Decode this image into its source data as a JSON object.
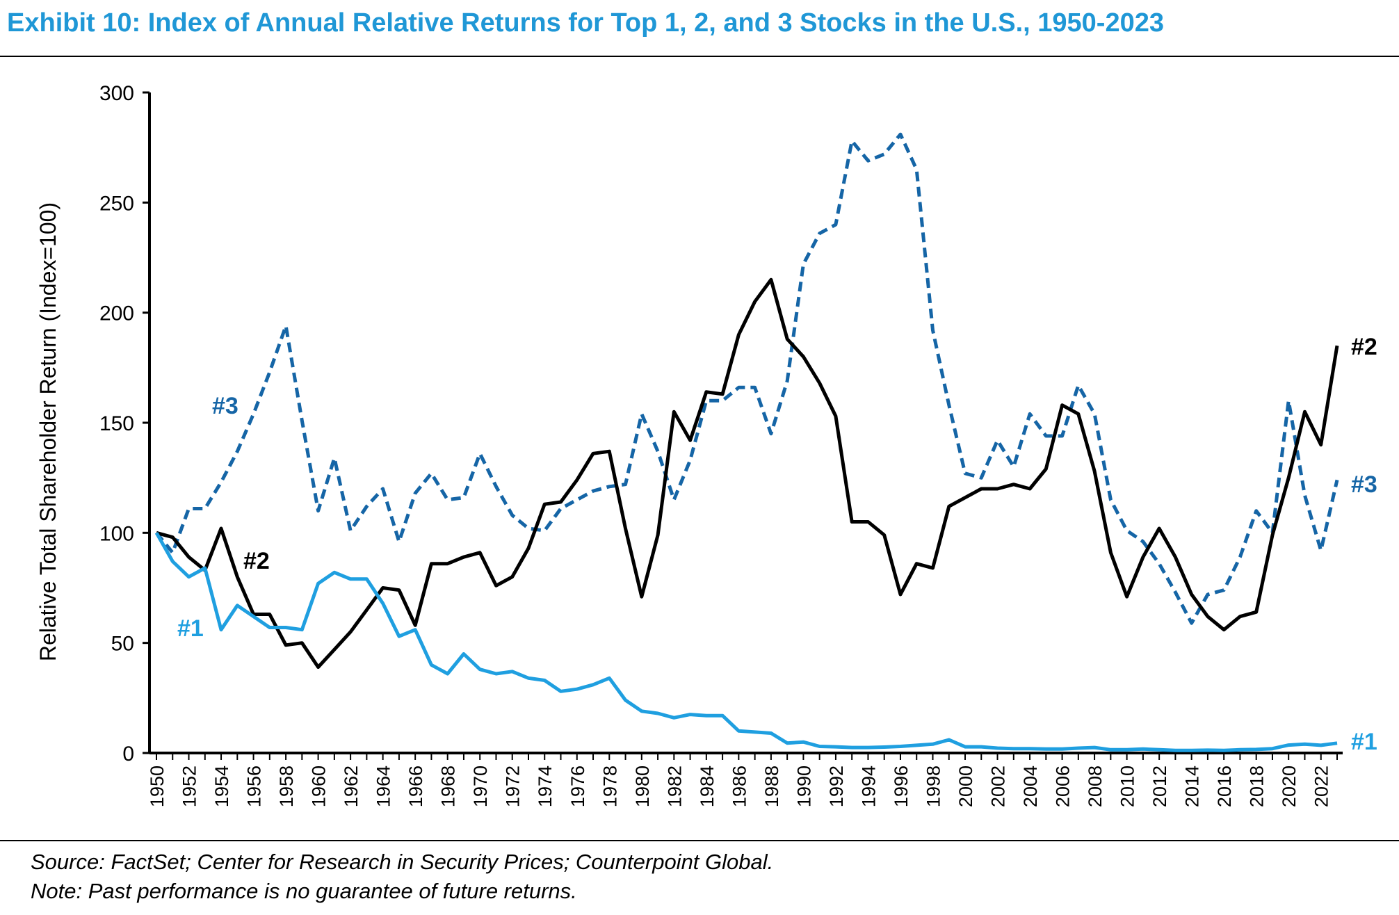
{
  "header": {
    "title": "Exhibit 10: Index of Annual Relative Returns for Top 1, 2, and 3 Stocks in the U.S., 1950-2023"
  },
  "footer": {
    "source": "Source: FactSet; Center for Research in Security Prices; Counterpoint Global.",
    "note": "Note: Past performance is no guarantee of future returns."
  },
  "colors": {
    "top1": "#1f9fe0",
    "top2": "#000000",
    "top3": "#1565a6",
    "title": "#1f97d6"
  },
  "chart_data": {
    "type": "line",
    "title": "Exhibit 10: Index of Annual Relative Returns for Top 1, 2, and 3 Stocks in the U.S., 1950-2023",
    "ylabel": "Relative Total Shareholder Return (Index=100)",
    "xlabel": "",
    "ylim": [
      0,
      300
    ],
    "yticks": [
      0,
      50,
      100,
      150,
      200,
      250,
      300
    ],
    "xlim": [
      1950,
      2023
    ],
    "xtick_labels": [
      "1950",
      "1952",
      "1954",
      "1956",
      "1958",
      "1960",
      "1962",
      "1964",
      "1966",
      "1968",
      "1970",
      "1972",
      "1974",
      "1976",
      "1978",
      "1980",
      "1982",
      "1984",
      "1986",
      "1988",
      "1990",
      "1992",
      "1994",
      "1996",
      "1998",
      "2000",
      "2002",
      "2004",
      "2006",
      "2008",
      "2010",
      "2012",
      "2014",
      "2016",
      "2018",
      "2020",
      "2022"
    ],
    "grid": false,
    "legend": "none",
    "x": [
      1950,
      1951,
      1952,
      1953,
      1954,
      1955,
      1956,
      1957,
      1958,
      1959,
      1960,
      1961,
      1962,
      1963,
      1964,
      1965,
      1966,
      1967,
      1968,
      1969,
      1970,
      1971,
      1972,
      1973,
      1974,
      1975,
      1976,
      1977,
      1978,
      1979,
      1980,
      1981,
      1982,
      1983,
      1984,
      1985,
      1986,
      1987,
      1988,
      1989,
      1990,
      1991,
      1992,
      1993,
      1994,
      1995,
      1996,
      1997,
      1998,
      1999,
      2000,
      2001,
      2002,
      2003,
      2004,
      2005,
      2006,
      2007,
      2008,
      2009,
      2010,
      2011,
      2012,
      2013,
      2014,
      2015,
      2016,
      2017,
      2018,
      2019,
      2020,
      2021,
      2022,
      2023
    ],
    "series": [
      {
        "name": "#1",
        "label_positions": [
          "start-left",
          "end-right"
        ],
        "style": "solid",
        "values": [
          100,
          87,
          80,
          84,
          56,
          67,
          62,
          57,
          57,
          56,
          77,
          82,
          79,
          79,
          68,
          53,
          56,
          40,
          36,
          45,
          38,
          36,
          37,
          34,
          33,
          28,
          29,
          31,
          34,
          24,
          19,
          18,
          16,
          17.5,
          17,
          17,
          10,
          9.5,
          9,
          4.5,
          5,
          3,
          2.8,
          2.5,
          2.5,
          2.7,
          3,
          3.5,
          4,
          6,
          2.8,
          2.8,
          2.2,
          2,
          2,
          1.8,
          1.8,
          2.2,
          2.5,
          1.5,
          1.5,
          1.8,
          1.5,
          1.2,
          1.2,
          1.3,
          1.2,
          1.5,
          1.6,
          2,
          3.6,
          4,
          3.5,
          4.5
        ]
      },
      {
        "name": "#2",
        "label_positions": [
          "start-right",
          "end-right"
        ],
        "style": "solid",
        "values": [
          100,
          98,
          89,
          83,
          102,
          80,
          63,
          63,
          49,
          50,
          39,
          47,
          55,
          65,
          75,
          74,
          58,
          86,
          86,
          89,
          91,
          76,
          80,
          93,
          113,
          114,
          124,
          136,
          137,
          102,
          71,
          99,
          155,
          142,
          164,
          163,
          190,
          205,
          215,
          188,
          180,
          168,
          153,
          105,
          105,
          99,
          72,
          86,
          84,
          112,
          116,
          120,
          120,
          122,
          120,
          129,
          158,
          154,
          128,
          91,
          71,
          89,
          102,
          89,
          72,
          62,
          56,
          62,
          64,
          99,
          125,
          155,
          140,
          185
        ]
      },
      {
        "name": "#3",
        "label_positions": [
          "start-left",
          "end-right"
        ],
        "style": "dashed",
        "values": [
          100,
          91,
          111,
          111,
          123,
          137,
          154,
          173,
          194,
          151,
          110,
          134,
          101,
          112,
          120,
          96,
          118,
          127,
          115,
          116,
          136,
          121,
          108,
          102,
          101,
          111,
          115,
          119,
          121,
          122,
          154,
          137,
          115,
          133,
          160,
          160,
          166,
          166,
          145,
          169,
          222,
          236,
          240,
          278,
          269,
          272,
          281,
          265,
          192,
          158,
          127,
          125,
          142,
          130,
          154,
          144,
          144,
          167,
          154,
          115,
          101,
          96,
          86,
          73,
          59,
          72,
          74,
          89,
          110,
          100,
          160,
          117,
          92,
          124
        ]
      }
    ]
  }
}
